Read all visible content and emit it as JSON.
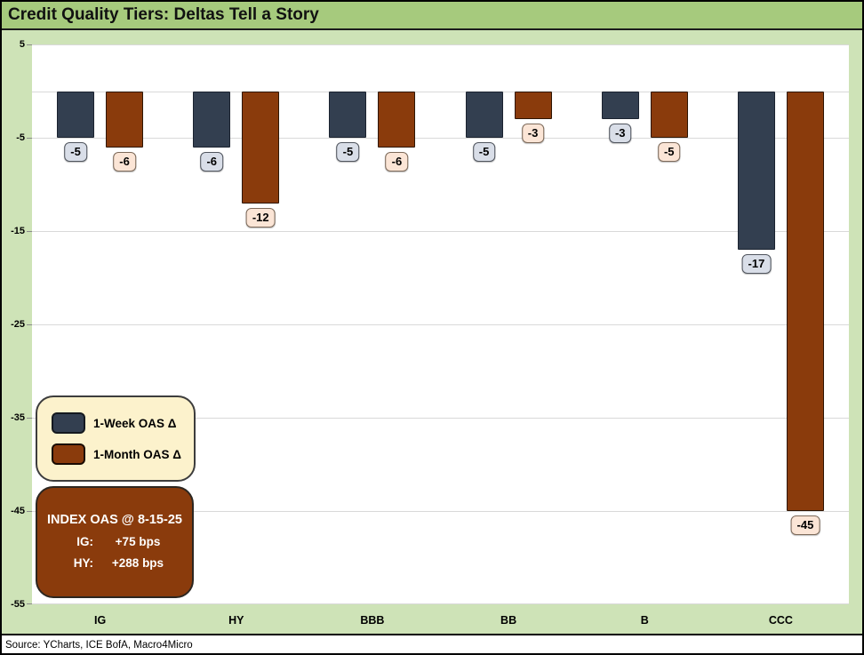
{
  "title": "Credit Quality Tiers: Deltas Tell a Story",
  "source_note": "Source: YCharts, ICE BofA, Macro4Micro",
  "legend": {
    "week_label": "1-Week OAS Δ",
    "month_label": "1-Month OAS Δ"
  },
  "annotation_box": {
    "title": "INDEX OAS @ 8-15-25",
    "rows": [
      {
        "label": "IG:",
        "value": "+75 bps"
      },
      {
        "label": "HY:",
        "value": "+288 bps"
      }
    ]
  },
  "colors": {
    "title_bar_green": "#a6ca7d",
    "chart_bg_green": "#cee3b7",
    "plot_bg": "#ffffff",
    "gridline": "#d9d9d9",
    "week_bar": "#333f50",
    "month_bar": "#8a3b0c",
    "week_label_bg": "#d9dee8",
    "month_label_bg": "#fbe5d6",
    "legend_bg": "#fcf2cc",
    "annotation_bg": "#8a3b0c"
  },
  "chart_data": {
    "type": "bar",
    "title": "Credit Quality Tiers: Deltas Tell a Story",
    "categories": [
      "IG",
      "HY",
      "BBB",
      "BB",
      "B",
      "CCC"
    ],
    "series": [
      {
        "name": "1-Week OAS Δ",
        "values": [
          -5,
          -6,
          -5,
          -5,
          -3,
          -17
        ]
      },
      {
        "name": "1-Month OAS Δ",
        "values": [
          -6,
          -12,
          -6,
          -3,
          -5,
          -45
        ]
      }
    ],
    "xlabel": "",
    "ylabel": "",
    "ylim": [
      -55,
      5
    ],
    "yticks": [
      5,
      -5,
      -15,
      -25,
      -35,
      -45,
      -55
    ],
    "grid": true,
    "data_labels": true,
    "legend_position": "inside-bottom-left"
  }
}
